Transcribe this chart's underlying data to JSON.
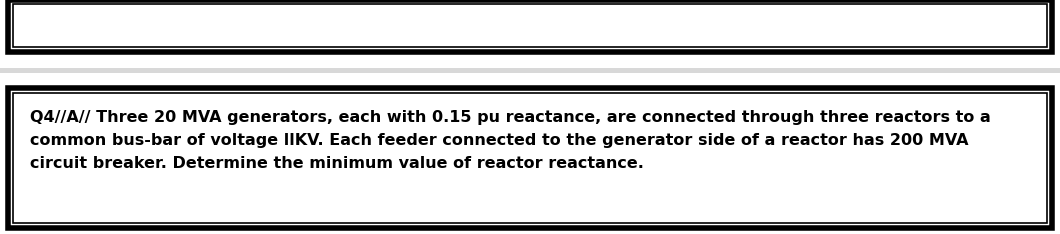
{
  "top_box_color": "#ffffff",
  "top_box_border_color": "#000000",
  "bottom_box_color": "#ffffff",
  "bottom_box_border_color": "#000000",
  "background_color": "#ffffff",
  "separator_color": "#d8d8d8",
  "text": "Q4//A// Three 20 MVA generators, each with 0.15 pu reactance, are connected through three reactors to a\ncommon bus-bar of voltage llKV. Each feeder connected to the generator side of a reactor has 200 MVA\ncircuit breaker. Determine the minimum value of reactor reactance.",
  "text_color": "#000000",
  "text_fontsize": 11.5,
  "fig_width": 10.6,
  "fig_height": 2.34,
  "dpi": 100
}
